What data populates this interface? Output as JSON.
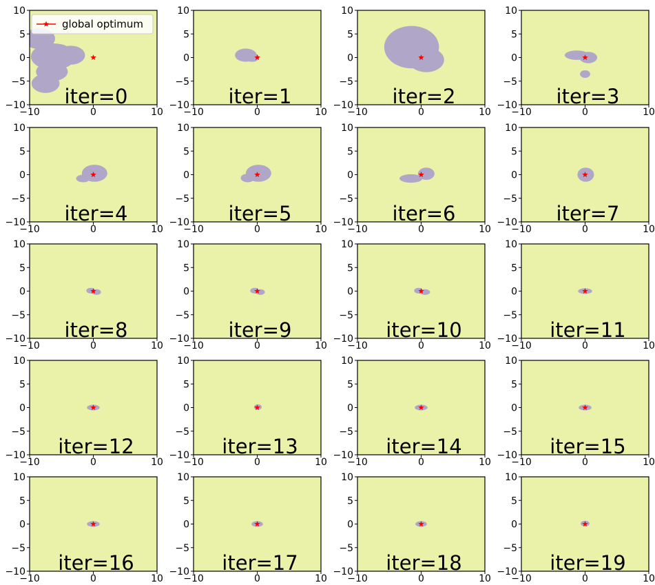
{
  "figure": {
    "background": "#ffffff",
    "region_color": "#b0a6c8",
    "background_fill": "#e9f2a8",
    "optimum_color": "#ff0000",
    "axis_color": "#000000",
    "x_ticks": [
      "−10",
      "0",
      "10"
    ],
    "y_ticks": [
      "10",
      "5",
      "0",
      "−5",
      "−10"
    ],
    "legend_label": "global optimum"
  },
  "chart_data": [
    {
      "type": "heatmap",
      "annotation": "iter=0",
      "xlim": [
        -10,
        10
      ],
      "ylim": [
        -10,
        10
      ],
      "optimum": [
        0,
        0
      ],
      "regions": [
        {
          "cx": -8.5,
          "cy": 4,
          "rx": 2.5,
          "ry": 2.2
        },
        {
          "cx": -6.3,
          "cy": 0.2,
          "rx": 3.5,
          "ry": 2.8
        },
        {
          "cx": -3.5,
          "cy": 0.5,
          "rx": 2.2,
          "ry": 2
        },
        {
          "cx": -6.5,
          "cy": -3,
          "rx": 2.5,
          "ry": 2
        },
        {
          "cx": -7.5,
          "cy": -5.5,
          "rx": 2.2,
          "ry": 2
        }
      ]
    },
    {
      "type": "heatmap",
      "annotation": "iter=1",
      "xlim": [
        -10,
        10
      ],
      "ylim": [
        -10,
        10
      ],
      "optimum": [
        0,
        0
      ],
      "regions": [
        {
          "cx": -1.8,
          "cy": 0.5,
          "rx": 1.7,
          "ry": 1.4
        },
        {
          "cx": -0.8,
          "cy": 0,
          "rx": 1.1,
          "ry": 0.9
        }
      ]
    },
    {
      "type": "heatmap",
      "annotation": "iter=2",
      "xlim": [
        -10,
        10
      ],
      "ylim": [
        -10,
        10
      ],
      "optimum": [
        0,
        0
      ],
      "regions": [
        {
          "cx": -1.5,
          "cy": 2.2,
          "rx": 4.3,
          "ry": 4.5
        },
        {
          "cx": 0.8,
          "cy": -0.5,
          "rx": 2.8,
          "ry": 2.6
        }
      ]
    },
    {
      "type": "heatmap",
      "annotation": "iter=3",
      "xlim": [
        -10,
        10
      ],
      "ylim": [
        -10,
        10
      ],
      "optimum": [
        0,
        0
      ],
      "regions": [
        {
          "cx": -1.3,
          "cy": 0.5,
          "rx": 1.9,
          "ry": 1
        },
        {
          "cx": 0.5,
          "cy": 0,
          "rx": 1.4,
          "ry": 1.2
        },
        {
          "cx": 0,
          "cy": -3.5,
          "rx": 0.8,
          "ry": 0.8
        }
      ]
    },
    {
      "type": "heatmap",
      "annotation": "iter=4",
      "xlim": [
        -10,
        10
      ],
      "ylim": [
        -10,
        10
      ],
      "optimum": [
        0,
        0
      ],
      "regions": [
        {
          "cx": 0.2,
          "cy": 0.3,
          "rx": 2,
          "ry": 1.8
        },
        {
          "cx": -1.6,
          "cy": -0.8,
          "rx": 1.1,
          "ry": 0.8
        }
      ]
    },
    {
      "type": "heatmap",
      "annotation": "iter=5",
      "xlim": [
        -10,
        10
      ],
      "ylim": [
        -10,
        10
      ],
      "optimum": [
        0,
        0
      ],
      "regions": [
        {
          "cx": 0.2,
          "cy": 0.3,
          "rx": 2,
          "ry": 1.8
        },
        {
          "cx": -1.5,
          "cy": -0.7,
          "rx": 1.1,
          "ry": 0.9
        }
      ]
    },
    {
      "type": "heatmap",
      "annotation": "iter=6",
      "xlim": [
        -10,
        10
      ],
      "ylim": [
        -10,
        10
      ],
      "optimum": [
        0,
        0
      ],
      "regions": [
        {
          "cx": 0.8,
          "cy": 0.2,
          "rx": 1.3,
          "ry": 1.3
        },
        {
          "cx": -1.6,
          "cy": -0.8,
          "rx": 1.8,
          "ry": 0.9
        }
      ]
    },
    {
      "type": "heatmap",
      "annotation": "iter=7",
      "xlim": [
        -10,
        10
      ],
      "ylim": [
        -10,
        10
      ],
      "optimum": [
        0,
        0
      ],
      "regions": [
        {
          "cx": 0.1,
          "cy": 0,
          "rx": 1.3,
          "ry": 1.5
        }
      ]
    },
    {
      "type": "heatmap",
      "annotation": "iter=8",
      "xlim": [
        -10,
        10
      ],
      "ylim": [
        -10,
        10
      ],
      "optimum": [
        0,
        0
      ],
      "regions": [
        {
          "cx": -0.4,
          "cy": 0.1,
          "rx": 0.7,
          "ry": 0.6
        },
        {
          "cx": 0.5,
          "cy": -0.2,
          "rx": 0.7,
          "ry": 0.6
        }
      ]
    },
    {
      "type": "heatmap",
      "annotation": "iter=9",
      "xlim": [
        -10,
        10
      ],
      "ylim": [
        -10,
        10
      ],
      "optimum": [
        0,
        0
      ],
      "regions": [
        {
          "cx": -0.4,
          "cy": 0.1,
          "rx": 0.7,
          "ry": 0.6
        },
        {
          "cx": 0.5,
          "cy": -0.2,
          "rx": 0.7,
          "ry": 0.6
        }
      ]
    },
    {
      "type": "heatmap",
      "annotation": "iter=10",
      "xlim": [
        -10,
        10
      ],
      "ylim": [
        -10,
        10
      ],
      "optimum": [
        0,
        0
      ],
      "regions": [
        {
          "cx": -0.4,
          "cy": 0.1,
          "rx": 0.7,
          "ry": 0.6
        },
        {
          "cx": 0.6,
          "cy": -0.2,
          "rx": 0.8,
          "ry": 0.6
        }
      ]
    },
    {
      "type": "heatmap",
      "annotation": "iter=11",
      "xlim": [
        -10,
        10
      ],
      "ylim": [
        -10,
        10
      ],
      "optimum": [
        0,
        0
      ],
      "regions": [
        {
          "cx": 0,
          "cy": 0,
          "rx": 1.1,
          "ry": 0.6
        }
      ]
    },
    {
      "type": "heatmap",
      "annotation": "iter=12",
      "xlim": [
        -10,
        10
      ],
      "ylim": [
        -10,
        10
      ],
      "optimum": [
        0,
        0
      ],
      "regions": [
        {
          "cx": 0,
          "cy": 0,
          "rx": 1,
          "ry": 0.6
        }
      ]
    },
    {
      "type": "heatmap",
      "annotation": "iter=13",
      "xlim": [
        -10,
        10
      ],
      "ylim": [
        -10,
        10
      ],
      "optimum": [
        0,
        0
      ],
      "regions": [
        {
          "cx": 0.1,
          "cy": 0.1,
          "rx": 0.6,
          "ry": 0.6
        }
      ]
    },
    {
      "type": "heatmap",
      "annotation": "iter=14",
      "xlim": [
        -10,
        10
      ],
      "ylim": [
        -10,
        10
      ],
      "optimum": [
        0,
        0
      ],
      "regions": [
        {
          "cx": 0,
          "cy": 0,
          "rx": 1,
          "ry": 0.6
        }
      ]
    },
    {
      "type": "heatmap",
      "annotation": "iter=15",
      "xlim": [
        -10,
        10
      ],
      "ylim": [
        -10,
        10
      ],
      "optimum": [
        0,
        0
      ],
      "regions": [
        {
          "cx": 0,
          "cy": 0,
          "rx": 1,
          "ry": 0.6
        }
      ]
    },
    {
      "type": "heatmap",
      "annotation": "iter=16",
      "xlim": [
        -10,
        10
      ],
      "ylim": [
        -10,
        10
      ],
      "optimum": [
        0,
        0
      ],
      "regions": [
        {
          "cx": 0,
          "cy": 0,
          "rx": 1,
          "ry": 0.6
        }
      ]
    },
    {
      "type": "heatmap",
      "annotation": "iter=17",
      "xlim": [
        -10,
        10
      ],
      "ylim": [
        -10,
        10
      ],
      "optimum": [
        0,
        0
      ],
      "regions": [
        {
          "cx": 0,
          "cy": 0,
          "rx": 0.9,
          "ry": 0.6
        }
      ]
    },
    {
      "type": "heatmap",
      "annotation": "iter=18",
      "xlim": [
        -10,
        10
      ],
      "ylim": [
        -10,
        10
      ],
      "optimum": [
        0,
        0
      ],
      "regions": [
        {
          "cx": 0,
          "cy": 0,
          "rx": 0.9,
          "ry": 0.6
        }
      ]
    },
    {
      "type": "heatmap",
      "annotation": "iter=19",
      "xlim": [
        -10,
        10
      ],
      "ylim": [
        -10,
        10
      ],
      "optimum": [
        0,
        0
      ],
      "regions": [
        {
          "cx": 0,
          "cy": 0.1,
          "rx": 0.7,
          "ry": 0.6
        }
      ]
    }
  ]
}
